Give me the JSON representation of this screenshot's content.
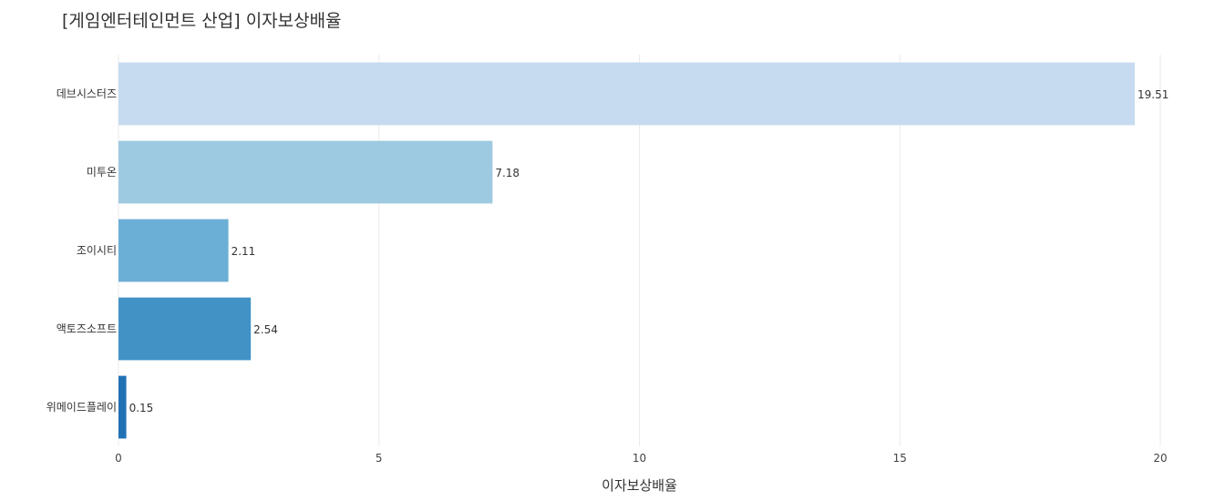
{
  "chart_data": {
    "type": "bar",
    "orientation": "horizontal",
    "title": "[게임엔터테인먼트 산업] 이자보상배율",
    "xlabel": "이자보상배율",
    "ylabel": "",
    "xlim": [
      0,
      20
    ],
    "x_ticks": [
      0,
      5,
      10,
      15,
      20
    ],
    "grid": true,
    "categories": [
      "데브시스터즈",
      "미투온",
      "조이시티",
      "액토즈소프트",
      "위메이드플레이"
    ],
    "values": [
      19.51,
      7.18,
      2.11,
      2.54,
      0.15
    ],
    "value_labels": [
      "19.51",
      "7.18",
      "2.11",
      "2.54",
      "0.15"
    ],
    "bar_colors": [
      "#c6dbef",
      "#9ecae1",
      "#6baed6",
      "#4292c6",
      "#2171b5"
    ]
  }
}
